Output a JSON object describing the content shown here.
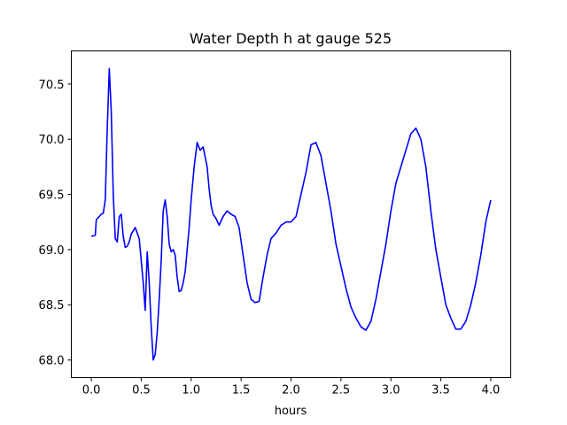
{
  "chart_data": {
    "type": "line",
    "title": "Water Depth h at gauge 525",
    "xlabel": "hours",
    "ylabel": "",
    "xlim": [
      -0.2,
      4.2
    ],
    "ylim": [
      67.84,
      70.8
    ],
    "xticks": [
      0.0,
      0.5,
      1.0,
      1.5,
      2.0,
      2.5,
      3.0,
      3.5,
      4.0
    ],
    "xtick_labels": [
      "0.0",
      "0.5",
      "1.0",
      "1.5",
      "2.0",
      "2.5",
      "3.0",
      "3.5",
      "4.0"
    ],
    "yticks": [
      68.0,
      68.5,
      69.0,
      69.5,
      70.0,
      70.5
    ],
    "ytick_labels": [
      "68.0",
      "68.5",
      "69.0",
      "69.5",
      "70.0",
      "70.5"
    ],
    "grid": false,
    "line_color": "#0000ff",
    "series": [
      {
        "x": [
          0.0,
          0.04,
          0.05,
          0.06,
          0.1,
          0.12,
          0.14,
          0.16,
          0.18,
          0.2,
          0.22,
          0.24,
          0.26,
          0.28,
          0.3,
          0.32,
          0.34,
          0.36,
          0.38,
          0.4,
          0.44,
          0.48,
          0.5,
          0.52,
          0.54,
          0.56,
          0.58,
          0.6,
          0.62,
          0.64,
          0.66,
          0.68,
          0.7,
          0.72,
          0.74,
          0.76,
          0.78,
          0.8,
          0.82,
          0.84,
          0.86,
          0.88,
          0.9,
          0.92,
          0.94,
          0.96,
          0.98,
          1.0,
          1.03,
          1.06,
          1.09,
          1.12,
          1.16,
          1.18,
          1.2,
          1.22,
          1.25,
          1.28,
          1.32,
          1.36,
          1.4,
          1.44,
          1.48,
          1.52,
          1.56,
          1.6,
          1.64,
          1.68,
          1.72,
          1.76,
          1.8,
          1.85,
          1.9,
          1.95,
          2.0,
          2.05,
          2.1,
          2.15,
          2.2,
          2.25,
          2.3,
          2.35,
          2.4,
          2.45,
          2.5,
          2.55,
          2.6,
          2.65,
          2.7,
          2.75,
          2.8,
          2.85,
          2.9,
          2.95,
          3.0,
          3.05,
          3.1,
          3.15,
          3.2,
          3.25,
          3.3,
          3.35,
          3.4,
          3.45,
          3.5,
          3.55,
          3.6,
          3.65,
          3.7,
          3.75,
          3.8,
          3.85,
          3.9,
          3.95,
          4.0
        ],
        "y": [
          69.12,
          69.13,
          69.27,
          69.28,
          69.32,
          69.33,
          69.45,
          70.1,
          70.64,
          70.25,
          69.5,
          69.1,
          69.07,
          69.3,
          69.32,
          69.12,
          69.02,
          69.03,
          69.07,
          69.14,
          69.2,
          69.1,
          68.9,
          68.7,
          68.45,
          68.98,
          68.7,
          68.3,
          68.0,
          68.05,
          68.25,
          68.55,
          68.9,
          69.35,
          69.45,
          69.3,
          69.05,
          68.98,
          69.0,
          68.95,
          68.75,
          68.62,
          68.63,
          68.7,
          68.8,
          69.0,
          69.2,
          69.45,
          69.75,
          69.97,
          69.9,
          69.93,
          69.75,
          69.55,
          69.4,
          69.32,
          69.28,
          69.22,
          69.3,
          69.35,
          69.32,
          69.3,
          69.2,
          68.95,
          68.7,
          68.55,
          68.52,
          68.53,
          68.75,
          68.95,
          69.1,
          69.15,
          69.22,
          69.25,
          69.25,
          69.3,
          69.5,
          69.7,
          69.95,
          69.97,
          69.85,
          69.6,
          69.35,
          69.05,
          68.85,
          68.65,
          68.48,
          68.38,
          68.3,
          68.27,
          68.35,
          68.55,
          68.8,
          69.05,
          69.35,
          69.6,
          69.75,
          69.9,
          70.05,
          70.1,
          70.0,
          69.75,
          69.35,
          69.0,
          68.75,
          68.5,
          68.38,
          68.28,
          68.28,
          68.35,
          68.5,
          68.7,
          68.95,
          69.25,
          69.45
        ]
      }
    ]
  }
}
